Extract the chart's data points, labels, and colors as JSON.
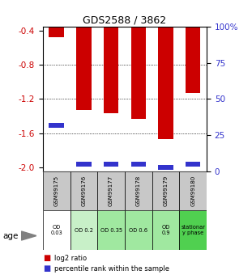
{
  "title": "GDS2588 / 3862",
  "samples": [
    "GSM99175",
    "GSM99176",
    "GSM99177",
    "GSM99178",
    "GSM99179",
    "GSM99180"
  ],
  "log2_ratio": [
    -0.48,
    -1.33,
    -1.37,
    -1.43,
    -1.67,
    -1.13
  ],
  "percentile_rank": [
    32,
    5,
    5,
    5,
    3,
    5
  ],
  "ylim_left": [
    -2.05,
    -0.35
  ],
  "ylim_right": [
    0,
    100
  ],
  "yticks_left": [
    -2.0,
    -1.6,
    -1.2,
    -0.8,
    -0.4
  ],
  "yticks_right": [
    0,
    25,
    50,
    75,
    100
  ],
  "ytick_labels_right": [
    "0",
    "25",
    "50",
    "75",
    "100%"
  ],
  "grid_lines": [
    -0.8,
    -1.2,
    -1.6
  ],
  "bar_color": "#cc0000",
  "pct_color": "#3333cc",
  "bar_width": 0.55,
  "age_labels": [
    "OD\n0.03",
    "OD 0.2",
    "OD 0.35",
    "OD 0.6",
    "OD\n0.9",
    "stationar\ny phase"
  ],
  "age_bg_colors": [
    "#ffffff",
    "#c8f0c8",
    "#a0e8a0",
    "#a0e8a0",
    "#a0e8a0",
    "#50d050"
  ],
  "legend_red": "log2 ratio",
  "legend_blue": "percentile rank within the sample",
  "ylabel_left_color": "#cc0000",
  "ylabel_right_color": "#3333cc"
}
